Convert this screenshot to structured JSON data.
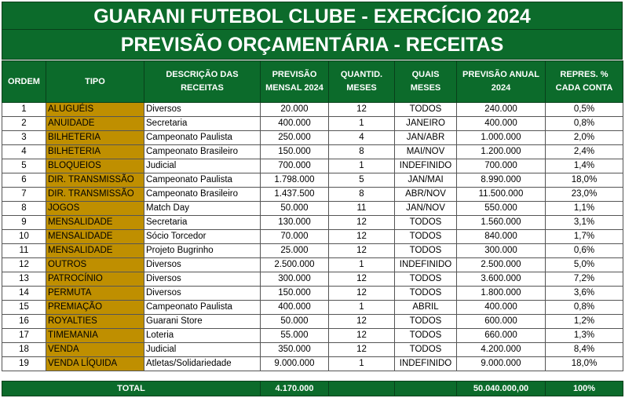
{
  "title_line1": "GUARANI FUTEBOL CLUBE - EXERCÍCIO 2024",
  "title_line2": "PREVISÃO ORÇAMENTÁRIA - RECEITAS",
  "headers": [
    "ORDEM",
    "TIPO",
    "DESCRIÇÃO DAS RECEITAS",
    "PREVISÃO MENSAL 2024",
    "QUANTID. MESES",
    "QUAIS MESES",
    "PREVISÃO ANUAL 2024",
    "REPRES. % CADA CONTA"
  ],
  "rows": [
    {
      "ordem": "1",
      "tipo": "ALUGUÉIS",
      "descricao": "Diversos",
      "mensal": "20.000",
      "qtd": "12",
      "meses": "TODOS",
      "anual": "240.000",
      "perc": "0,5%"
    },
    {
      "ordem": "2",
      "tipo": "ANUIDADE",
      "descricao": "Secretaria",
      "mensal": "400.000",
      "qtd": "1",
      "meses": "JANEIRO",
      "anual": "400.000",
      "perc": "0,8%"
    },
    {
      "ordem": "3",
      "tipo": "BILHETERIA",
      "descricao": "Campeonato Paulista",
      "mensal": "250.000",
      "qtd": "4",
      "meses": "JAN/ABR",
      "anual": "1.000.000",
      "perc": "2,0%"
    },
    {
      "ordem": "4",
      "tipo": "BILHETERIA",
      "descricao": "Campeonato Brasileiro",
      "mensal": "150.000",
      "qtd": "8",
      "meses": "MAI/NOV",
      "anual": "1.200.000",
      "perc": "2,4%"
    },
    {
      "ordem": "5",
      "tipo": "BLOQUEIOS",
      "descricao": "Judicial",
      "mensal": "700.000",
      "qtd": "1",
      "meses": "INDEFINIDO",
      "anual": "700.000",
      "perc": "1,4%"
    },
    {
      "ordem": "6",
      "tipo": "DIR. TRANSMISSÃO",
      "descricao": "Campeonato Paulista",
      "mensal": "1.798.000",
      "qtd": "5",
      "meses": "JAN/MAI",
      "anual": "8.990.000",
      "perc": "18,0%"
    },
    {
      "ordem": "7",
      "tipo": "DIR. TRANSMISSÃO",
      "descricao": "Campeonato Brasileiro",
      "mensal": "1.437.500",
      "qtd": "8",
      "meses": "ABR/NOV",
      "anual": "11.500.000",
      "perc": "23,0%"
    },
    {
      "ordem": "8",
      "tipo": "JOGOS",
      "descricao": "Match Day",
      "mensal": "50.000",
      "qtd": "11",
      "meses": "JAN/NOV",
      "anual": "550.000",
      "perc": "1,1%"
    },
    {
      "ordem": "9",
      "tipo": "MENSALIDADE",
      "descricao": "Secretaria",
      "mensal": "130.000",
      "qtd": "12",
      "meses": "TODOS",
      "anual": "1.560.000",
      "perc": "3,1%"
    },
    {
      "ordem": "10",
      "tipo": "MENSALIDADE",
      "descricao": "Sócio Torcedor",
      "mensal": "70.000",
      "qtd": "12",
      "meses": "TODOS",
      "anual": "840.000",
      "perc": "1,7%"
    },
    {
      "ordem": "11",
      "tipo": "MENSALIDADE",
      "descricao": "Projeto Bugrinho",
      "mensal": "25.000",
      "qtd": "12",
      "meses": "TODOS",
      "anual": "300.000",
      "perc": "0,6%"
    },
    {
      "ordem": "12",
      "tipo": "OUTROS",
      "descricao": "Diversos",
      "mensal": "2.500.000",
      "qtd": "1",
      "meses": "INDEFINIDO",
      "anual": "2.500.000",
      "perc": "5,0%"
    },
    {
      "ordem": "13",
      "tipo": "PATROCÍNIO",
      "descricao": "Diversos",
      "mensal": "300.000",
      "qtd": "12",
      "meses": "TODOS",
      "anual": "3.600.000",
      "perc": "7,2%"
    },
    {
      "ordem": "14",
      "tipo": "PERMUTA",
      "descricao": "Diversos",
      "mensal": "150.000",
      "qtd": "12",
      "meses": "TODOS",
      "anual": "1.800.000",
      "perc": "3,6%"
    },
    {
      "ordem": "15",
      "tipo": "PREMIAÇÃO",
      "descricao": "Campeonato Paulista",
      "mensal": "400.000",
      "qtd": "1",
      "meses": "ABRIL",
      "anual": "400.000",
      "perc": "0,8%"
    },
    {
      "ordem": "16",
      "tipo": "ROYALTIES",
      "descricao": "Guarani Store",
      "mensal": "50.000",
      "qtd": "12",
      "meses": "TODOS",
      "anual": "600.000",
      "perc": "1,2%"
    },
    {
      "ordem": "17",
      "tipo": "TIMEMANIA",
      "descricao": "Loteria",
      "mensal": "55.000",
      "qtd": "12",
      "meses": "TODOS",
      "anual": "660.000",
      "perc": "1,3%"
    },
    {
      "ordem": "18",
      "tipo": "VENDA",
      "descricao": "Judicial",
      "mensal": "350.000",
      "qtd": "12",
      "meses": "TODOS",
      "anual": "4.200.000",
      "perc": "8,4%"
    },
    {
      "ordem": "19",
      "tipo": "VENDA LÍQUIDA",
      "descricao": "Atletas/Solidariedade",
      "mensal": "9.000.000",
      "qtd": "1",
      "meses": "INDEFINIDO",
      "anual": "9.000.000",
      "perc": "18,0%"
    }
  ],
  "total": {
    "label": "TOTAL",
    "mensal": "4.170.000",
    "anual": "50.040.000,00",
    "perc": "100%"
  },
  "colors": {
    "header_green": "#0c6b2b",
    "tipo_gold": "#bf8f00"
  }
}
